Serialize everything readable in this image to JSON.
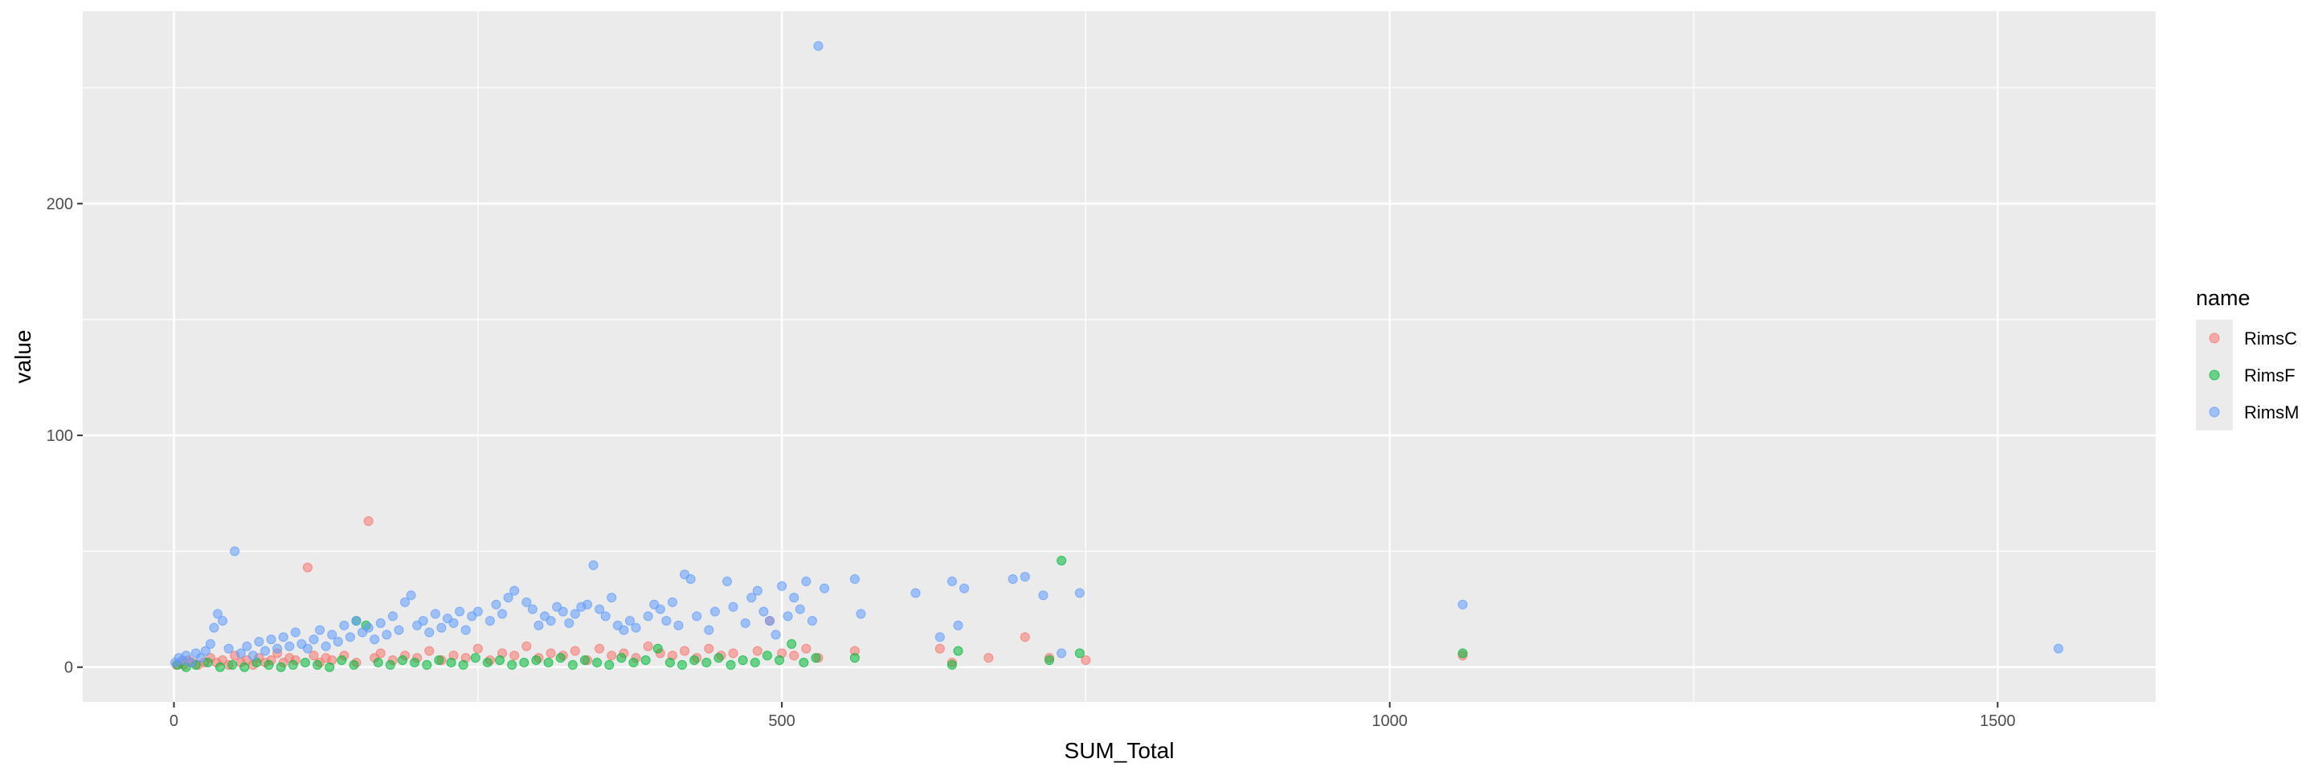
{
  "chart_data": {
    "type": "scatter",
    "xlabel": "SUM_Total",
    "ylabel": "value",
    "xlim": [
      -75,
      1630
    ],
    "ylim": [
      -15,
      283
    ],
    "x_ticks": [
      0,
      500,
      1000,
      1500
    ],
    "y_ticks": [
      0,
      100,
      200
    ],
    "grid": true,
    "legend_title": "name",
    "legend_position": "right",
    "colors": {
      "RimsC": "#F8766D",
      "RimsF": "#00BA38",
      "RimsM": "#619CFF"
    },
    "series": [
      {
        "name": "RimsC",
        "color": "#F8766D",
        "points": [
          [
            2,
            1
          ],
          [
            5,
            2
          ],
          [
            8,
            1
          ],
          [
            12,
            3
          ],
          [
            15,
            2
          ],
          [
            20,
            1
          ],
          [
            25,
            2
          ],
          [
            30,
            4
          ],
          [
            35,
            2
          ],
          [
            40,
            3
          ],
          [
            45,
            1
          ],
          [
            50,
            5
          ],
          [
            55,
            2
          ],
          [
            60,
            3
          ],
          [
            65,
            1
          ],
          [
            70,
            4
          ],
          [
            75,
            2
          ],
          [
            80,
            3
          ],
          [
            85,
            6
          ],
          [
            90,
            2
          ],
          [
            95,
            4
          ],
          [
            100,
            3
          ],
          [
            110,
            43
          ],
          [
            115,
            5
          ],
          [
            120,
            2
          ],
          [
            125,
            4
          ],
          [
            130,
            3
          ],
          [
            140,
            5
          ],
          [
            150,
            2
          ],
          [
            160,
            63
          ],
          [
            165,
            4
          ],
          [
            170,
            6
          ],
          [
            180,
            3
          ],
          [
            190,
            5
          ],
          [
            200,
            4
          ],
          [
            210,
            7
          ],
          [
            220,
            3
          ],
          [
            230,
            5
          ],
          [
            240,
            4
          ],
          [
            250,
            8
          ],
          [
            260,
            3
          ],
          [
            270,
            6
          ],
          [
            280,
            5
          ],
          [
            290,
            9
          ],
          [
            300,
            4
          ],
          [
            310,
            6
          ],
          [
            320,
            5
          ],
          [
            330,
            7
          ],
          [
            340,
            3
          ],
          [
            350,
            8
          ],
          [
            360,
            5
          ],
          [
            370,
            6
          ],
          [
            380,
            4
          ],
          [
            390,
            9
          ],
          [
            400,
            6
          ],
          [
            410,
            5
          ],
          [
            420,
            7
          ],
          [
            430,
            4
          ],
          [
            440,
            8
          ],
          [
            450,
            5
          ],
          [
            460,
            6
          ],
          [
            480,
            7
          ],
          [
            490,
            20
          ],
          [
            500,
            6
          ],
          [
            510,
            5
          ],
          [
            520,
            8
          ],
          [
            530,
            4
          ],
          [
            560,
            7
          ],
          [
            630,
            8
          ],
          [
            640,
            2
          ],
          [
            670,
            4
          ],
          [
            700,
            13
          ],
          [
            720,
            4
          ],
          [
            750,
            3
          ],
          [
            1060,
            5
          ]
        ]
      },
      {
        "name": "RimsF",
        "color": "#00BA38",
        "points": [
          [
            3,
            1
          ],
          [
            10,
            0
          ],
          [
            18,
            1
          ],
          [
            28,
            2
          ],
          [
            38,
            0
          ],
          [
            48,
            1
          ],
          [
            58,
            0
          ],
          [
            68,
            2
          ],
          [
            78,
            1
          ],
          [
            88,
            0
          ],
          [
            98,
            1
          ],
          [
            108,
            2
          ],
          [
            118,
            1
          ],
          [
            128,
            0
          ],
          [
            138,
            3
          ],
          [
            148,
            1
          ],
          [
            150,
            20
          ],
          [
            158,
            18
          ],
          [
            168,
            2
          ],
          [
            178,
            1
          ],
          [
            188,
            3
          ],
          [
            198,
            2
          ],
          [
            208,
            1
          ],
          [
            218,
            3
          ],
          [
            228,
            2
          ],
          [
            238,
            1
          ],
          [
            248,
            4
          ],
          [
            258,
            2
          ],
          [
            268,
            3
          ],
          [
            278,
            1
          ],
          [
            288,
            2
          ],
          [
            298,
            3
          ],
          [
            308,
            2
          ],
          [
            318,
            4
          ],
          [
            328,
            1
          ],
          [
            338,
            3
          ],
          [
            348,
            2
          ],
          [
            358,
            1
          ],
          [
            368,
            4
          ],
          [
            378,
            2
          ],
          [
            388,
            3
          ],
          [
            398,
            8
          ],
          [
            408,
            2
          ],
          [
            418,
            1
          ],
          [
            428,
            3
          ],
          [
            438,
            2
          ],
          [
            448,
            4
          ],
          [
            458,
            1
          ],
          [
            468,
            3
          ],
          [
            478,
            2
          ],
          [
            488,
            5
          ],
          [
            498,
            3
          ],
          [
            508,
            10
          ],
          [
            518,
            2
          ],
          [
            528,
            4
          ],
          [
            560,
            4
          ],
          [
            640,
            1
          ],
          [
            645,
            7
          ],
          [
            720,
            3
          ],
          [
            730,
            46
          ],
          [
            745,
            6
          ],
          [
            1060,
            6
          ]
        ]
      },
      {
        "name": "RimsM",
        "color": "#619CFF",
        "points": [
          [
            1,
            2
          ],
          [
            4,
            4
          ],
          [
            7,
            3
          ],
          [
            10,
            5
          ],
          [
            14,
            2
          ],
          [
            18,
            6
          ],
          [
            22,
            4
          ],
          [
            26,
            7
          ],
          [
            30,
            10
          ],
          [
            33,
            17
          ],
          [
            36,
            23
          ],
          [
            40,
            20
          ],
          [
            45,
            8
          ],
          [
            50,
            50
          ],
          [
            55,
            6
          ],
          [
            60,
            9
          ],
          [
            65,
            5
          ],
          [
            70,
            11
          ],
          [
            75,
            7
          ],
          [
            80,
            12
          ],
          [
            85,
            8
          ],
          [
            90,
            13
          ],
          [
            95,
            9
          ],
          [
            100,
            15
          ],
          [
            105,
            10
          ],
          [
            110,
            8
          ],
          [
            115,
            12
          ],
          [
            120,
            16
          ],
          [
            125,
            9
          ],
          [
            130,
            14
          ],
          [
            135,
            11
          ],
          [
            140,
            18
          ],
          [
            145,
            13
          ],
          [
            150,
            20
          ],
          [
            155,
            15
          ],
          [
            160,
            17
          ],
          [
            165,
            12
          ],
          [
            170,
            19
          ],
          [
            175,
            14
          ],
          [
            180,
            22
          ],
          [
            185,
            16
          ],
          [
            190,
            28
          ],
          [
            195,
            31
          ],
          [
            200,
            18
          ],
          [
            205,
            20
          ],
          [
            210,
            15
          ],
          [
            215,
            23
          ],
          [
            220,
            17
          ],
          [
            225,
            21
          ],
          [
            230,
            19
          ],
          [
            235,
            24
          ],
          [
            240,
            16
          ],
          [
            245,
            22
          ],
          [
            250,
            24
          ],
          [
            260,
            20
          ],
          [
            265,
            27
          ],
          [
            270,
            23
          ],
          [
            275,
            30
          ],
          [
            280,
            33
          ],
          [
            290,
            28
          ],
          [
            295,
            25
          ],
          [
            300,
            18
          ],
          [
            305,
            22
          ],
          [
            310,
            20
          ],
          [
            315,
            26
          ],
          [
            320,
            24
          ],
          [
            325,
            19
          ],
          [
            330,
            23
          ],
          [
            335,
            26
          ],
          [
            340,
            27
          ],
          [
            345,
            44
          ],
          [
            350,
            25
          ],
          [
            355,
            22
          ],
          [
            360,
            30
          ],
          [
            365,
            18
          ],
          [
            370,
            16
          ],
          [
            375,
            20
          ],
          [
            380,
            17
          ],
          [
            390,
            22
          ],
          [
            395,
            27
          ],
          [
            400,
            25
          ],
          [
            405,
            20
          ],
          [
            410,
            28
          ],
          [
            415,
            18
          ],
          [
            420,
            40
          ],
          [
            425,
            38
          ],
          [
            430,
            22
          ],
          [
            440,
            16
          ],
          [
            445,
            24
          ],
          [
            455,
            37
          ],
          [
            460,
            26
          ],
          [
            470,
            19
          ],
          [
            475,
            30
          ],
          [
            480,
            33
          ],
          [
            485,
            24
          ],
          [
            490,
            20
          ],
          [
            495,
            14
          ],
          [
            500,
            35
          ],
          [
            505,
            22
          ],
          [
            510,
            30
          ],
          [
            515,
            25
          ],
          [
            520,
            37
          ],
          [
            525,
            20
          ],
          [
            530,
            268
          ],
          [
            535,
            34
          ],
          [
            560,
            38
          ],
          [
            565,
            23
          ],
          [
            610,
            32
          ],
          [
            630,
            13
          ],
          [
            640,
            37
          ],
          [
            645,
            18
          ],
          [
            650,
            34
          ],
          [
            690,
            38
          ],
          [
            700,
            39
          ],
          [
            715,
            31
          ],
          [
            730,
            6
          ],
          [
            745,
            32
          ],
          [
            1060,
            27
          ],
          [
            1550,
            8
          ]
        ]
      }
    ]
  }
}
